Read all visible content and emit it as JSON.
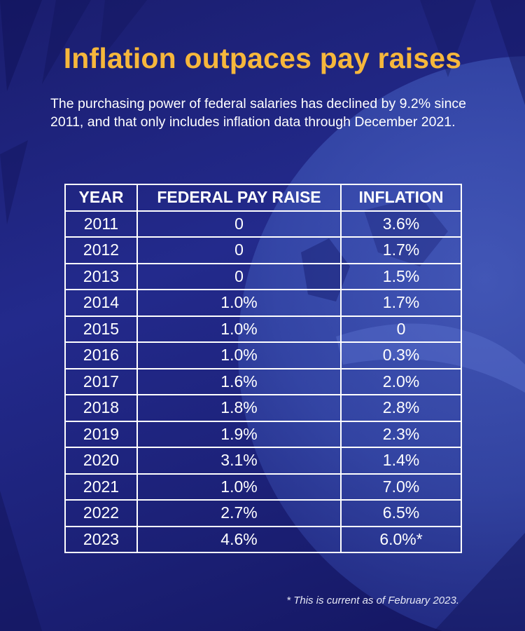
{
  "title": "Inflation outpaces pay raises",
  "subtitle": "The purchasing power of federal salaries has declined by 9.2% since 2011, and that only includes inflation data through December 2021.",
  "footnote": "* This is current as of February 2023.",
  "colors": {
    "title": "#f6b73c",
    "text": "#ffffff",
    "background": "#1f2480"
  },
  "chart_data": {
    "type": "table",
    "columns": [
      "YEAR",
      "FEDERAL PAY RAISE",
      "INFLATION"
    ],
    "rows": [
      [
        "2011",
        "0",
        "3.6%"
      ],
      [
        "2012",
        "0",
        "1.7%"
      ],
      [
        "2013",
        "0",
        "1.5%"
      ],
      [
        "2014",
        "1.0%",
        "1.7%"
      ],
      [
        "2015",
        "1.0%",
        "0"
      ],
      [
        "2016",
        "1.0%",
        "0.3%"
      ],
      [
        "2017",
        "1.6%",
        "2.0%"
      ],
      [
        "2018",
        "1.8%",
        "2.8%"
      ],
      [
        "2019",
        "1.9%",
        "2.3%"
      ],
      [
        "2020",
        "3.1%",
        "1.4%"
      ],
      [
        "2021",
        "1.0%",
        "7.0%"
      ],
      [
        "2022",
        "2.7%",
        "6.5%"
      ],
      [
        "2023",
        "4.6%",
        "6.0%*"
      ]
    ]
  }
}
